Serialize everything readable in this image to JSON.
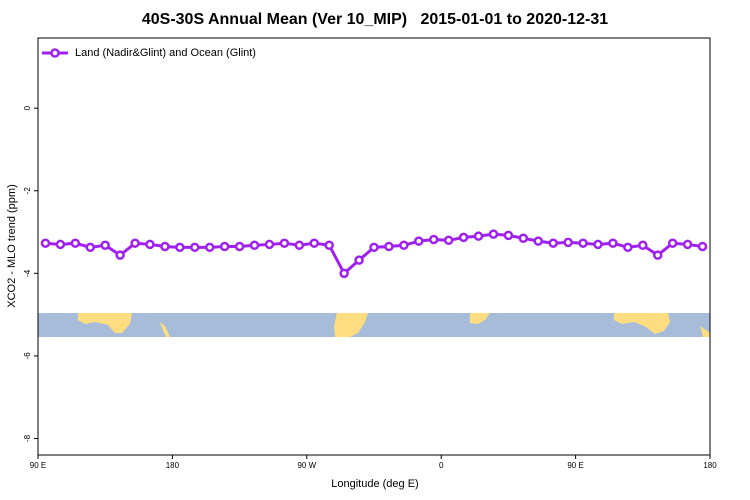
{
  "chart_data": {
    "type": "line",
    "title": "40S-30S Annual Mean (Ver 10_MIP)   2015-01-01 to 2020-12-31",
    "xlabel": "Longitude (deg E)",
    "ylabel": "XCO2 - MLO trend (ppm)",
    "x": [
      95,
      105,
      115,
      125,
      135,
      145,
      155,
      165,
      175,
      185,
      195,
      205,
      215,
      225,
      235,
      245,
      255,
      265,
      275,
      285,
      295,
      305,
      315,
      325,
      335,
      345,
      355,
      365,
      375,
      385,
      395,
      405,
      415,
      425,
      435,
      445,
      455,
      465,
      475,
      485,
      495,
      505,
      515,
      525,
      535
    ],
    "series": [
      {
        "name": "Land (Nadir&Glint) and Ocean (Glint)",
        "color": "#a020f0",
        "values": [
          -3.27,
          -3.3,
          -3.27,
          -3.37,
          -3.32,
          -3.56,
          -3.27,
          -3.3,
          -3.35,
          -3.37,
          -3.37,
          -3.37,
          -3.35,
          -3.35,
          -3.32,
          -3.3,
          -3.27,
          -3.32,
          -3.27,
          -3.32,
          -4.0,
          -3.68,
          -3.37,
          -3.35,
          -3.32,
          -3.22,
          -3.18,
          -3.2,
          -3.13,
          -3.1,
          -3.05,
          -3.08,
          -3.15,
          -3.22,
          -3.27,
          -3.25,
          -3.27,
          -3.3,
          -3.27,
          -3.37,
          -3.32,
          -3.56,
          -3.27,
          -3.3,
          -3.35
        ]
      }
    ],
    "xlim": [
      90,
      540
    ],
    "xticks": [
      {
        "value": 90,
        "label": "90 E"
      },
      180,
      {
        "value": 270,
        "label": "90 W"
      },
      {
        "value": 360,
        "label": "0"
      },
      {
        "value": 450,
        "label": "90 E"
      },
      {
        "value": 540,
        "label": "180"
      }
    ],
    "ylim": [
      -8.4,
      1.7
    ],
    "yticks": [
      0,
      -2,
      -4,
      -6,
      -8
    ],
    "legend": "top-left"
  }
}
